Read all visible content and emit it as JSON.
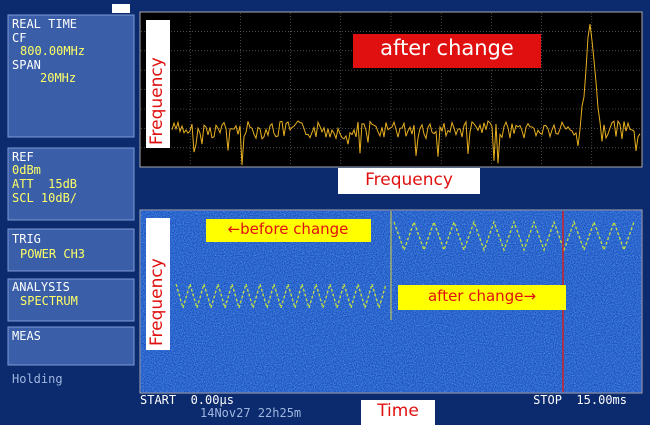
{
  "sidebar": {
    "mode": {
      "title": "REAL TIME",
      "cf_label": "CF",
      "cf_value": "800.00MHz",
      "span_label": "SPAN",
      "span_value": "20MHz"
    },
    "ref": {
      "label": "REF",
      "value": "0dBm",
      "att": "ATT  15dB",
      "scl": "SCL 10dB/"
    },
    "trig": {
      "label": "TRIG",
      "value": "POWER CH3"
    },
    "analysis": {
      "label": "ANALYSIS",
      "value": "SPECTRUM"
    },
    "meas": {
      "label": "MEAS"
    },
    "status": "Holding"
  },
  "spectrum": {
    "annotation": "after change",
    "y_label": "Frequency",
    "x_label": "Frequency"
  },
  "spectrogram": {
    "y_label": "Frequency",
    "before_label": "←before change",
    "after_label": "after change→",
    "start": "START  0.00μs",
    "stop": "STOP  15.00ms",
    "timestamp": "14Nov27 22h25m",
    "x_label": "Time"
  }
}
